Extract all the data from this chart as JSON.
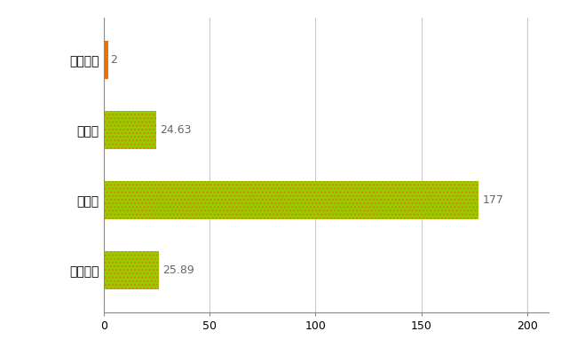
{
  "categories": [
    "那珂川町",
    "県平均",
    "県最大",
    "全国平均"
  ],
  "values": [
    2,
    24.63,
    177,
    25.89
  ],
  "bar_colors": [
    "#e8720c",
    "#99cc00",
    "#99cc00",
    "#99cc00"
  ],
  "value_labels": [
    "2",
    "24.63",
    "177",
    "25.89"
  ],
  "xlim": [
    0,
    210
  ],
  "xticks": [
    0,
    50,
    100,
    150,
    200
  ],
  "grid_color": "#cccccc",
  "background_color": "#ffffff",
  "bar_height": 0.55,
  "label_fontsize": 10,
  "tick_fontsize": 9,
  "value_label_color": "#666666",
  "value_label_fontsize": 9,
  "hatch_pattern": "....",
  "hatch_color": "#cc8800"
}
